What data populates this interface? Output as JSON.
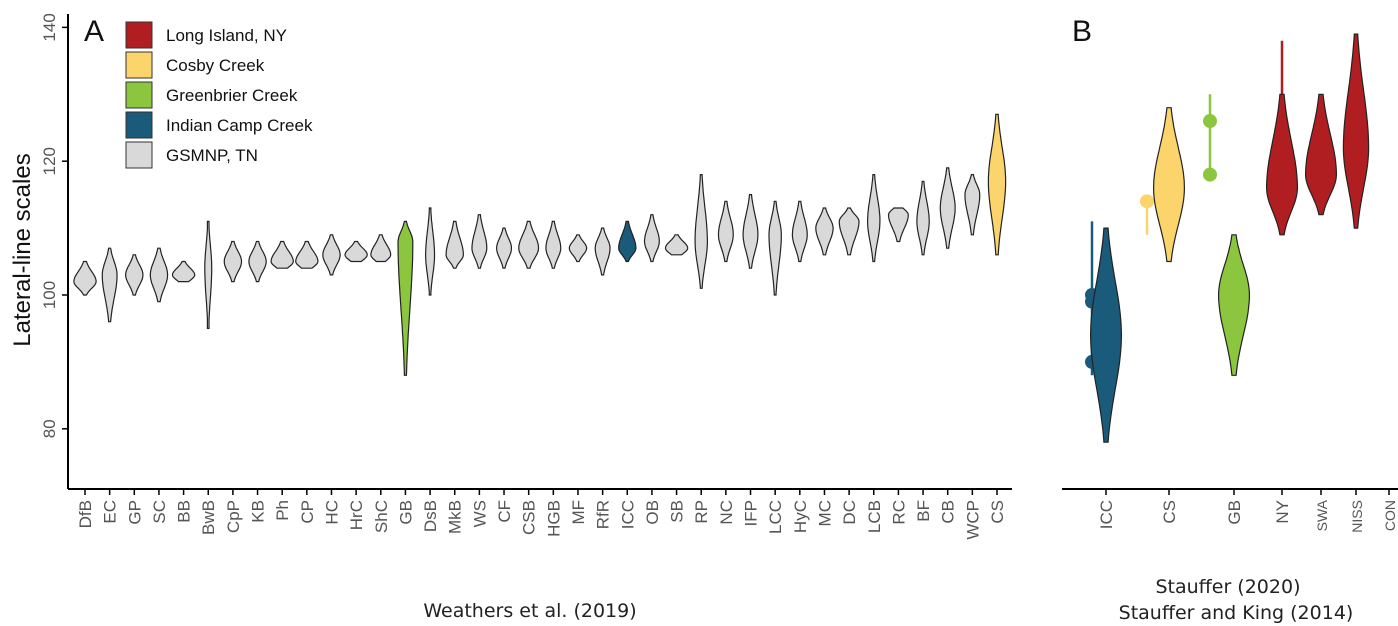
{
  "colors": {
    "long_island": "#B11E22",
    "cosby": "#FBD46C",
    "greenbrier": "#8CC63F",
    "indian_camp": "#1A5A7A",
    "gsmnp": "#D9D9D9"
  },
  "chart_data": [
    {
      "panel": "A",
      "type": "violin",
      "ylabel": "Lateral-line scales",
      "xlabel": "",
      "ylim": [
        71,
        142
      ],
      "yticks": [
        80,
        100,
        120,
        140
      ],
      "caption": "Weathers et al. (2019)",
      "legend": {
        "placement": "top-left",
        "entries": [
          {
            "label": "Long Island, NY",
            "color": "#B11E22"
          },
          {
            "label": "Cosby Creek",
            "color": "#FBD46C"
          },
          {
            "label": "Greenbrier Creek",
            "color": "#8CC63F"
          },
          {
            "label": "Indian Camp Creek",
            "color": "#1A5A7A"
          },
          {
            "label": "GSMNP, TN",
            "color": "#D9D9D9"
          }
        ]
      },
      "categories": [
        "DfB",
        "EC",
        "GP",
        "SC",
        "BB",
        "BwB",
        "CpP",
        "KB",
        "Ph",
        "CP",
        "HC",
        "HrC",
        "ShC",
        "GB",
        "DsB",
        "MkB",
        "WS",
        "CF",
        "CSB",
        "HGB",
        "MF",
        "RfR",
        "ICC",
        "OB",
        "SB",
        "RP",
        "NC",
        "IFP",
        "LCC",
        "HyC",
        "MC",
        "DC",
        "LCB",
        "RC",
        "BF",
        "CB",
        "WCP",
        "CS"
      ],
      "series": [
        {
          "min": 100,
          "max": 105,
          "mode": 102,
          "width": 0.45,
          "color": "#D9D9D9"
        },
        {
          "min": 96,
          "max": 107,
          "mode": 103,
          "width": 0.3,
          "color": "#D9D9D9"
        },
        {
          "min": 100,
          "max": 106,
          "mode": 103,
          "width": 0.35,
          "color": "#D9D9D9"
        },
        {
          "min": 99,
          "max": 107,
          "mode": 103,
          "width": 0.35,
          "color": "#D9D9D9"
        },
        {
          "min": 102,
          "max": 105,
          "mode": 103,
          "width": 0.45,
          "color": "#D9D9D9"
        },
        {
          "min": 95,
          "max": 111,
          "mode": 104,
          "width": 0.14,
          "color": "#D9D9D9"
        },
        {
          "min": 102,
          "max": 108,
          "mode": 105,
          "width": 0.35,
          "color": "#D9D9D9"
        },
        {
          "min": 102,
          "max": 108,
          "mode": 105,
          "width": 0.35,
          "color": "#D9D9D9"
        },
        {
          "min": 104,
          "max": 108,
          "mode": 105,
          "width": 0.45,
          "color": "#D9D9D9"
        },
        {
          "min": 104,
          "max": 108,
          "mode": 105,
          "width": 0.45,
          "color": "#D9D9D9"
        },
        {
          "min": 103,
          "max": 109,
          "mode": 106,
          "width": 0.35,
          "color": "#D9D9D9"
        },
        {
          "min": 105,
          "max": 108,
          "mode": 106,
          "width": 0.45,
          "color": "#D9D9D9"
        },
        {
          "min": 105,
          "max": 109,
          "mode": 106,
          "width": 0.4,
          "color": "#D9D9D9"
        },
        {
          "min": 88,
          "max": 111,
          "mode": 108,
          "width": 0.3,
          "color": "#8CC63F"
        },
        {
          "min": 100,
          "max": 113,
          "mode": 106,
          "width": 0.18,
          "color": "#D9D9D9"
        },
        {
          "min": 104,
          "max": 111,
          "mode": 106,
          "width": 0.35,
          "color": "#D9D9D9"
        },
        {
          "min": 104,
          "max": 112,
          "mode": 107,
          "width": 0.3,
          "color": "#D9D9D9"
        },
        {
          "min": 104,
          "max": 110,
          "mode": 107,
          "width": 0.3,
          "color": "#D9D9D9"
        },
        {
          "min": 104,
          "max": 111,
          "mode": 107,
          "width": 0.4,
          "color": "#D9D9D9"
        },
        {
          "min": 104,
          "max": 111,
          "mode": 107,
          "width": 0.3,
          "color": "#D9D9D9"
        },
        {
          "min": 105,
          "max": 109,
          "mode": 107,
          "width": 0.35,
          "color": "#D9D9D9"
        },
        {
          "min": 103,
          "max": 110,
          "mode": 107,
          "width": 0.3,
          "color": "#D9D9D9"
        },
        {
          "min": 105,
          "max": 111,
          "mode": 107,
          "width": 0.35,
          "color": "#1A5A7A"
        },
        {
          "min": 105,
          "max": 112,
          "mode": 108,
          "width": 0.3,
          "color": "#D9D9D9"
        },
        {
          "min": 106,
          "max": 109,
          "mode": 107,
          "width": 0.45,
          "color": "#D9D9D9"
        },
        {
          "min": 101,
          "max": 118,
          "mode": 108,
          "width": 0.25,
          "color": "#D9D9D9"
        },
        {
          "min": 105,
          "max": 114,
          "mode": 109,
          "width": 0.3,
          "color": "#D9D9D9"
        },
        {
          "min": 104,
          "max": 115,
          "mode": 109,
          "width": 0.3,
          "color": "#D9D9D9"
        },
        {
          "min": 100,
          "max": 114,
          "mode": 109,
          "width": 0.25,
          "color": "#D9D9D9"
        },
        {
          "min": 105,
          "max": 114,
          "mode": 109,
          "width": 0.3,
          "color": "#D9D9D9"
        },
        {
          "min": 106,
          "max": 113,
          "mode": 110,
          "width": 0.35,
          "color": "#D9D9D9"
        },
        {
          "min": 106,
          "max": 113,
          "mode": 111,
          "width": 0.4,
          "color": "#D9D9D9"
        },
        {
          "min": 105,
          "max": 118,
          "mode": 111,
          "width": 0.25,
          "color": "#D9D9D9"
        },
        {
          "min": 108,
          "max": 113,
          "mode": 112,
          "width": 0.4,
          "color": "#D9D9D9"
        },
        {
          "min": 106,
          "max": 117,
          "mode": 111,
          "width": 0.25,
          "color": "#D9D9D9"
        },
        {
          "min": 107,
          "max": 119,
          "mode": 113,
          "width": 0.3,
          "color": "#D9D9D9"
        },
        {
          "min": 109,
          "max": 118,
          "mode": 115,
          "width": 0.3,
          "color": "#D9D9D9"
        },
        {
          "min": 106,
          "max": 127,
          "mode": 117,
          "width": 0.35,
          "color": "#FBD46C"
        }
      ]
    },
    {
      "panel": "B",
      "type": "violin",
      "ylim": [
        71,
        142
      ],
      "caption_lines": [
        "Stauffer (2020)",
        "Stauffer and King (2014)"
      ],
      "categories": [
        "ICC",
        "CS",
        "GB",
        "NY",
        "SWA",
        "NISS",
        "CON"
      ],
      "violins": [
        {
          "category": "ICC",
          "min": 78,
          "max": 110,
          "mode": 94,
          "width": 0.55,
          "color": "#1A5A7A"
        },
        {
          "category": "CS",
          "min": 105,
          "max": 128,
          "mode": 116,
          "width": 0.55,
          "color": "#FBD46C"
        },
        {
          "category": "GB",
          "min": 88,
          "max": 109,
          "mode": 100,
          "width": 0.55,
          "color": "#8CC63F"
        },
        {
          "category": "NY",
          "min": 109,
          "max": 130,
          "mode": 116,
          "width": 0.55,
          "color": "#B11E22"
        },
        {
          "category": "SWA",
          "min": 112,
          "max": 130,
          "mode": 118,
          "width": 0.55,
          "color": "#B11E22"
        },
        {
          "category": "NISS",
          "min": 110,
          "max": 139,
          "mode": 122,
          "width": 0.45,
          "color": "#B11E22"
        }
      ],
      "ranges": [
        {
          "category": "ICC",
          "min": 88,
          "max": 111,
          "points": [
            90,
            99,
            100
          ],
          "color": "#1A5A7A"
        },
        {
          "category": "CS",
          "min": 109,
          "max": 114,
          "points": [
            114
          ],
          "color": "#FBD46C"
        },
        {
          "category": "GB",
          "min": 118,
          "max": 130,
          "points": [
            118,
            126
          ],
          "color": "#8CC63F"
        },
        {
          "category": "NY",
          "min": 109,
          "max": 138,
          "points": [],
          "color": "#B11E22"
        }
      ]
    }
  ]
}
